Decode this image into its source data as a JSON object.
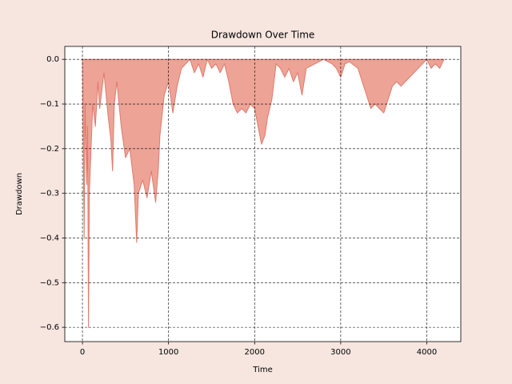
{
  "chart_data": {
    "type": "area",
    "title": "Drawdown Over Time",
    "x_label": "Time",
    "y_label": "Drawdown",
    "x": [
      0,
      20,
      30,
      50,
      60,
      70,
      80,
      100,
      120,
      150,
      180,
      200,
      250,
      300,
      330,
      350,
      370,
      400,
      450,
      500,
      550,
      600,
      630,
      650,
      700,
      750,
      800,
      850,
      880,
      900,
      950,
      1000,
      1050,
      1100,
      1150,
      1200,
      1250,
      1300,
      1350,
      1400,
      1450,
      1500,
      1550,
      1600,
      1650,
      1700,
      1750,
      1800,
      1850,
      1900,
      1950,
      2000,
      2050,
      2080,
      2120,
      2150,
      2200,
      2250,
      2300,
      2350,
      2400,
      2450,
      2500,
      2550,
      2600,
      2700,
      2800,
      2900,
      2950,
      3000,
      3050,
      3100,
      3200,
      3250,
      3300,
      3350,
      3400,
      3450,
      3500,
      3550,
      3600,
      3650,
      3700,
      3800,
      3900,
      3950,
      4000,
      4050,
      4100,
      4150,
      4200
    ],
    "values": [
      0,
      -0.4,
      -0.1,
      -0.28,
      -0.15,
      -0.6,
      -0.3,
      -0.2,
      -0.1,
      -0.15,
      -0.05,
      -0.11,
      -0.03,
      -0.13,
      -0.18,
      -0.25,
      -0.1,
      -0.05,
      -0.15,
      -0.22,
      -0.2,
      -0.28,
      -0.41,
      -0.3,
      -0.27,
      -0.31,
      -0.25,
      -0.32,
      -0.25,
      -0.17,
      -0.08,
      -0.05,
      -0.12,
      -0.06,
      -0.02,
      -0.01,
      0,
      -0.03,
      -0.01,
      -0.04,
      0,
      -0.02,
      -0.01,
      -0.03,
      -0.01,
      -0.05,
      -0.1,
      -0.12,
      -0.11,
      -0.12,
      -0.1,
      -0.11,
      -0.16,
      -0.19,
      -0.17,
      -0.13,
      -0.09,
      -0.01,
      -0.02,
      -0.04,
      -0.02,
      -0.05,
      -0.03,
      -0.08,
      -0.02,
      -0.01,
      0,
      -0.01,
      -0.02,
      -0.04,
      -0.01,
      -0.005,
      -0.02,
      -0.05,
      -0.08,
      -0.11,
      -0.1,
      -0.11,
      -0.12,
      -0.09,
      -0.06,
      -0.05,
      -0.06,
      -0.04,
      -0.02,
      -0.01,
      0,
      -0.02,
      -0.01,
      -0.02,
      0
    ],
    "color": "#e07a6a",
    "fill_color": "#eea397",
    "xlim": [
      -205,
      4395
    ],
    "ylim": [
      -0.632,
      0.029
    ],
    "xticks": [
      0,
      1000,
      2000,
      3000,
      4000
    ],
    "yticks": [
      {
        "value": 0,
        "label": "0.0"
      },
      {
        "value": -0.1,
        "label": "−0.1"
      },
      {
        "value": -0.2,
        "label": "−0.2"
      },
      {
        "value": -0.3,
        "label": "−0.3"
      },
      {
        "value": -0.4,
        "label": "−0.4"
      },
      {
        "value": -0.5,
        "label": "−0.5"
      },
      {
        "value": -0.6,
        "label": "−0.6"
      }
    ],
    "grid": true
  }
}
